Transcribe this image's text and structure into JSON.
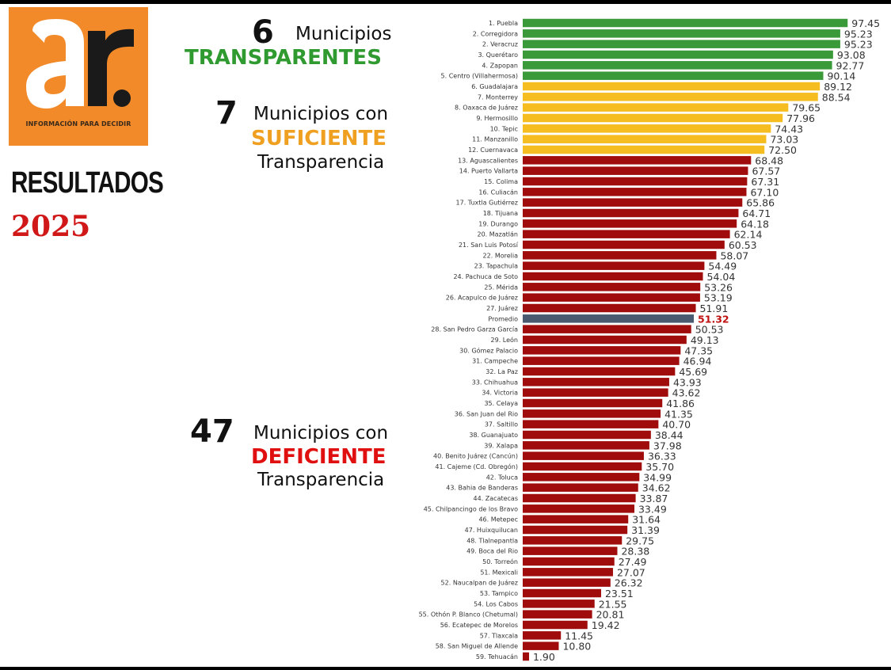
{
  "logo": {
    "text": "ar.",
    "tagline": "INFORMACIÓN PARA DECIDIR",
    "colors": {
      "background": "#f28a2a",
      "a": "#ffffff",
      "r": "#1a1a1a"
    }
  },
  "heading": {
    "title": "RESULTADOS",
    "year": "2025"
  },
  "groups": [
    {
      "count": "6",
      "line1": "Municipios",
      "category": "TRANSPARENTES",
      "line3": "",
      "color": "#2f9a2f"
    },
    {
      "count": "7",
      "line1": "Municipios con",
      "category": "SUFICIENTE",
      "line3": "Transparencia",
      "color": "#f0a020"
    },
    {
      "count": "47",
      "line1": "Municipios con",
      "category": "DEFICIENTE",
      "line3": "Transparencia",
      "color": "#e01010"
    }
  ],
  "chart_data": {
    "type": "bar",
    "orientation": "horizontal",
    "colors": {
      "transparente": "#3a9a3a",
      "suficiente": "#f5bd1f",
      "deficiente": "#a00c0c",
      "promedio": "#4a5a70",
      "promedio_value": "#c01010"
    },
    "xlim": [
      0,
      100
    ],
    "bars": [
      {
        "label": "1. Puebla",
        "value": 97.45,
        "group": "transparente"
      },
      {
        "label": "2. Corregidora",
        "value": 95.23,
        "group": "transparente"
      },
      {
        "label": "2. Veracruz",
        "value": 95.23,
        "group": "transparente"
      },
      {
        "label": "3. Querétaro",
        "value": 93.08,
        "group": "transparente"
      },
      {
        "label": "4. Zapopan",
        "value": 92.77,
        "group": "transparente"
      },
      {
        "label": "5. Centro (Villahermosa)",
        "value": 90.14,
        "group": "transparente"
      },
      {
        "label": "6. Guadalajara",
        "value": 89.12,
        "group": "suficiente"
      },
      {
        "label": "7. Monterrey",
        "value": 88.54,
        "group": "suficiente"
      },
      {
        "label": "8. Oaxaca de Juárez",
        "value": 79.65,
        "group": "suficiente"
      },
      {
        "label": "9. Hermosillo",
        "value": 77.96,
        "group": "suficiente"
      },
      {
        "label": "10. Tepic",
        "value": 74.43,
        "group": "suficiente"
      },
      {
        "label": "11. Manzanillo",
        "value": 73.03,
        "group": "suficiente"
      },
      {
        "label": "12. Cuernavaca",
        "value": 72.5,
        "group": "suficiente"
      },
      {
        "label": "13. Aguascalientes",
        "value": 68.48,
        "group": "deficiente"
      },
      {
        "label": "14. Puerto Vallarta",
        "value": 67.57,
        "group": "deficiente"
      },
      {
        "label": "15. Colima",
        "value": 67.31,
        "group": "deficiente"
      },
      {
        "label": "16. Culiacán",
        "value": 67.1,
        "group": "deficiente"
      },
      {
        "label": "17. Tuxtla Gutiérrez",
        "value": 65.86,
        "group": "deficiente"
      },
      {
        "label": "18. Tijuana",
        "value": 64.71,
        "group": "deficiente"
      },
      {
        "label": "19. Durango",
        "value": 64.18,
        "group": "deficiente"
      },
      {
        "label": "20. Mazatlán",
        "value": 62.14,
        "group": "deficiente"
      },
      {
        "label": "21. San Luis Potosí",
        "value": 60.53,
        "group": "deficiente"
      },
      {
        "label": "22. Morelia",
        "value": 58.07,
        "group": "deficiente"
      },
      {
        "label": "23. Tapachula",
        "value": 54.49,
        "group": "deficiente"
      },
      {
        "label": "24. Pachuca de Soto",
        "value": 54.04,
        "group": "deficiente"
      },
      {
        "label": "25. Mérida",
        "value": 53.26,
        "group": "deficiente"
      },
      {
        "label": "26. Acapulco de Juárez",
        "value": 53.19,
        "group": "deficiente"
      },
      {
        "label": "27. Juárez",
        "value": 51.91,
        "group": "deficiente"
      },
      {
        "label": "Promedio",
        "value": 51.32,
        "group": "promedio"
      },
      {
        "label": "28. San Pedro Garza García",
        "value": 50.53,
        "group": "deficiente"
      },
      {
        "label": "29. León",
        "value": 49.13,
        "group": "deficiente"
      },
      {
        "label": "30. Gómez Palacio",
        "value": 47.35,
        "group": "deficiente"
      },
      {
        "label": "31. Campeche",
        "value": 46.94,
        "group": "deficiente"
      },
      {
        "label": "32. La Paz",
        "value": 45.69,
        "group": "deficiente"
      },
      {
        "label": "33. Chihuahua",
        "value": 43.93,
        "group": "deficiente"
      },
      {
        "label": "34. Victoria",
        "value": 43.62,
        "group": "deficiente"
      },
      {
        "label": "35. Celaya",
        "value": 41.86,
        "group": "deficiente"
      },
      {
        "label": "36. San Juan del Rio",
        "value": 41.35,
        "group": "deficiente"
      },
      {
        "label": "37. Saltillo",
        "value": 40.7,
        "group": "deficiente"
      },
      {
        "label": "38. Guanajuato",
        "value": 38.44,
        "group": "deficiente"
      },
      {
        "label": "39. Xalapa",
        "value": 37.98,
        "group": "deficiente"
      },
      {
        "label": "40. Benito Juárez (Cancún)",
        "value": 36.33,
        "group": "deficiente"
      },
      {
        "label": "41. Cajeme (Cd. Obregón)",
        "value": 35.7,
        "group": "deficiente"
      },
      {
        "label": "42. Toluca",
        "value": 34.99,
        "group": "deficiente"
      },
      {
        "label": "43. Bahia de Banderas",
        "value": 34.62,
        "group": "deficiente"
      },
      {
        "label": "44. Zacatecas",
        "value": 33.87,
        "group": "deficiente"
      },
      {
        "label": "45. Chilpancingo de los Bravo",
        "value": 33.49,
        "group": "deficiente"
      },
      {
        "label": "46. Metepec",
        "value": 31.64,
        "group": "deficiente"
      },
      {
        "label": "47. Huixquilucan",
        "value": 31.39,
        "group": "deficiente"
      },
      {
        "label": "48. Tlalnepantla",
        "value": 29.75,
        "group": "deficiente"
      },
      {
        "label": "49. Boca del Rio",
        "value": 28.38,
        "group": "deficiente"
      },
      {
        "label": "50. Torreón",
        "value": 27.49,
        "group": "deficiente"
      },
      {
        "label": "51. Mexicali",
        "value": 27.07,
        "group": "deficiente"
      },
      {
        "label": "52. Naucalpan de Juárez",
        "value": 26.32,
        "group": "deficiente"
      },
      {
        "label": "53. Tampico",
        "value": 23.51,
        "group": "deficiente"
      },
      {
        "label": "54. Los Cabos",
        "value": 21.55,
        "group": "deficiente"
      },
      {
        "label": "55. Othón P. Blanco (Chetumal)",
        "value": 20.81,
        "group": "deficiente"
      },
      {
        "label": "56. Ecatepec de Morelos",
        "value": 19.42,
        "group": "deficiente"
      },
      {
        "label": "57. Tlaxcala",
        "value": 11.45,
        "group": "deficiente"
      },
      {
        "label": "58. San Miguel de Allende",
        "value": 10.8,
        "group": "deficiente"
      },
      {
        "label": "59. Tehuacán",
        "value": 1.9,
        "group": "deficiente"
      }
    ]
  }
}
